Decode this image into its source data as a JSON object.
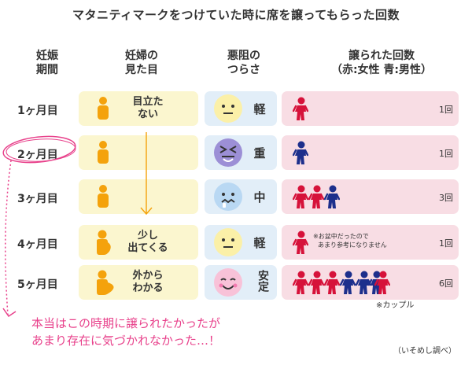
{
  "title": "マタニティマークをつけていた時に席を譲ってもらった回数",
  "headers": {
    "period": [
      "妊娠",
      "期間"
    ],
    "appearance": [
      "妊婦の",
      "見た目"
    ],
    "sickness": [
      "悪阻の",
      "つらさ"
    ],
    "offers": [
      "譲られた回数",
      "（赤:女性  青:男性）"
    ]
  },
  "rows": [
    {
      "month": "1ヶ月目",
      "appearance": [
        "目立た",
        "ない"
      ],
      "face": "neutral",
      "severity": "軽",
      "count": "1回",
      "offerers": [
        "female"
      ]
    },
    {
      "month": "2ヶ月目",
      "appearance": [],
      "face": "sick",
      "severity": "重",
      "count": "1回",
      "offerers": [
        "male"
      ]
    },
    {
      "month": "3ヶ月目",
      "appearance": [],
      "face": "nausea",
      "severity": "中",
      "count": "3回",
      "offerers": [
        "female",
        "female",
        "male"
      ]
    },
    {
      "month": "4ヶ月目",
      "appearance": [
        "少し",
        "出てくる"
      ],
      "face": "neutral",
      "severity": "軽",
      "count": "1回",
      "offerers": [
        "female"
      ],
      "note": [
        "※お盆中だったので",
        "あまり参考になりません"
      ]
    },
    {
      "month": "5ヶ月目",
      "appearance": [
        "外から",
        "わかる"
      ],
      "face": "happy",
      "severity": "安定",
      "count": "6回",
      "offerers": [
        "female",
        "female",
        "female",
        "male",
        "male",
        "couple"
      ]
    }
  ],
  "couple_note": "※カップル",
  "comment": [
    "本当はこの時期に譲られたかったが",
    "あまり存在に気づかれなかった…！"
  ],
  "credit": "（いそめし調べ）",
  "colors": {
    "female": "#d6123a",
    "male": "#1d2f8c",
    "pregnant": "#f4a20c",
    "accent": "#e8418b"
  }
}
